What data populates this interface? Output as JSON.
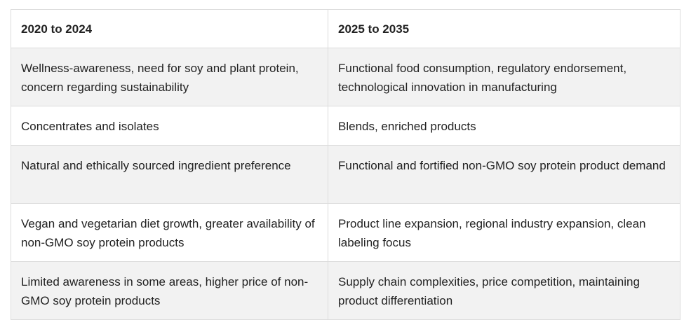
{
  "table": {
    "headers": [
      "2020 to 2024",
      "2025 to 2035"
    ],
    "rows": [
      [
        "Wellness-awareness, need for soy and plant protein, concern regarding sustainability",
        "Functional food consumption, regulatory endorsement, technological innovation in manufacturing"
      ],
      [
        "Concentrates and isolates",
        "Blends, enriched products"
      ],
      [
        "Natural and ethically sourced ingredient preference",
        "Functional and fortified non-GMO soy protein product demand"
      ],
      [
        "Vegan and vegetarian diet growth, greater availability of non-GMO soy protein products",
        "Product line expansion, regional industry expansion, clean labeling focus"
      ],
      [
        "Limited awareness in some areas, higher price of non-GMO soy protein products",
        "Supply chain complexities, price competition, maintaining product differentiation"
      ]
    ]
  },
  "colors": {
    "shaded_row": "#f2f2f2",
    "border": "#dcdcdc",
    "text": "#222222"
  }
}
